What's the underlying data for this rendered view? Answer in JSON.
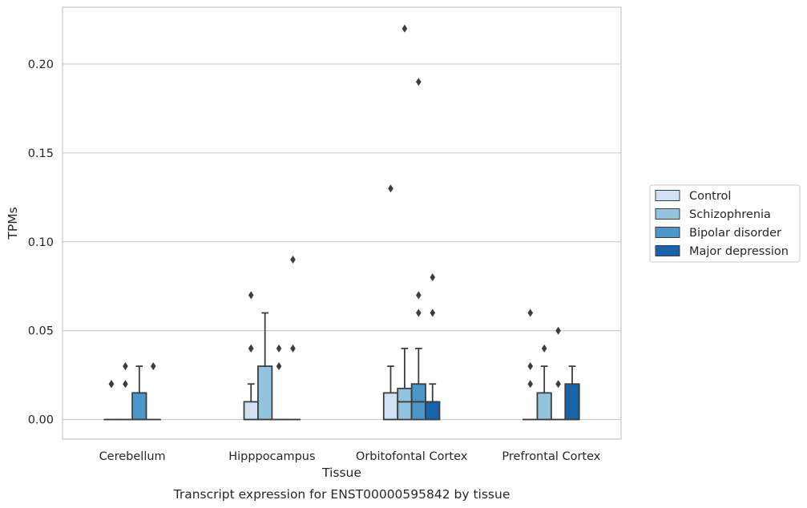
{
  "chart_data": {
    "type": "box",
    "title": "",
    "caption": "Transcript expression for ENST00000595842 by tissue",
    "xlabel": "Tissue",
    "ylabel": "TPMs",
    "ylim": [
      -0.011,
      0.232
    ],
    "yticks": [
      "0.00",
      "0.05",
      "0.10",
      "0.15",
      "0.20"
    ],
    "grid": "horizontal",
    "legend_position": "right",
    "categories": [
      "Cerebellum",
      "Hipppocampus",
      "Orbitofontal Cortex",
      "Prefrontal Cortex"
    ],
    "series": [
      {
        "name": "Control",
        "color": "#cfe1f2"
      },
      {
        "name": "Schizophrenia",
        "color": "#93c4de"
      },
      {
        "name": "Bipolar disorder",
        "color": "#4b97c9"
      },
      {
        "name": "Major depression",
        "color": "#1764ab"
      }
    ],
    "boxes": [
      [
        {
          "q1": 0,
          "median": 0,
          "q3": 0,
          "whisker_low": 0,
          "whisker_high": 0,
          "outliers": [
            0.02,
            0.02
          ]
        },
        {
          "q1": 0,
          "median": 0,
          "q3": 0,
          "whisker_low": 0,
          "whisker_high": 0,
          "outliers": [
            0.02,
            0.03
          ]
        },
        {
          "q1": 0,
          "median": 0,
          "q3": 0.015,
          "whisker_low": 0,
          "whisker_high": 0.03,
          "outliers": []
        },
        {
          "q1": 0,
          "median": 0,
          "q3": 0,
          "whisker_low": 0,
          "whisker_high": 0,
          "outliers": [
            0.03
          ]
        }
      ],
      [
        {
          "q1": 0,
          "median": 0,
          "q3": 0.01,
          "whisker_low": 0,
          "whisker_high": 0.02,
          "outliers": [
            0.04,
            0.04,
            0.07
          ]
        },
        {
          "q1": 0,
          "median": 0,
          "q3": 0.03,
          "whisker_low": 0,
          "whisker_high": 0.06,
          "outliers": []
        },
        {
          "q1": 0,
          "median": 0,
          "q3": 0,
          "whisker_low": 0,
          "whisker_high": 0,
          "outliers": [
            0.03,
            0.04
          ]
        },
        {
          "q1": 0,
          "median": 0,
          "q3": 0,
          "whisker_low": 0,
          "whisker_high": 0,
          "outliers": [
            0.04,
            0.09
          ]
        }
      ],
      [
        {
          "q1": 0,
          "median": 0,
          "q3": 0.015,
          "whisker_low": 0,
          "whisker_high": 0.03,
          "outliers": [
            0.13
          ]
        },
        {
          "q1": 0,
          "median": 0.01,
          "q3": 0.0175,
          "whisker_low": 0,
          "whisker_high": 0.04,
          "outliers": [
            0.22
          ]
        },
        {
          "q1": 0,
          "median": 0.01,
          "q3": 0.02,
          "whisker_low": 0,
          "whisker_high": 0.04,
          "outliers": [
            0.06,
            0.07,
            0.19
          ]
        },
        {
          "q1": 0,
          "median": 0.01,
          "q3": 0.01,
          "whisker_low": 0,
          "whisker_high": 0.02,
          "outliers": [
            0.06,
            0.08
          ]
        }
      ],
      [
        {
          "q1": 0,
          "median": 0,
          "q3": 0,
          "whisker_low": 0,
          "whisker_high": 0,
          "outliers": [
            0.02,
            0.03,
            0.06
          ]
        },
        {
          "q1": 0,
          "median": 0,
          "q3": 0.015,
          "whisker_low": 0,
          "whisker_high": 0.03,
          "outliers": [
            0.04
          ]
        },
        {
          "q1": 0,
          "median": 0,
          "q3": 0,
          "whisker_low": 0,
          "whisker_high": 0,
          "outliers": [
            0.02,
            0.05
          ]
        },
        {
          "q1": 0,
          "median": 0,
          "q3": 0.02,
          "whisker_low": 0,
          "whisker_high": 0.03,
          "outliers": []
        }
      ]
    ]
  }
}
